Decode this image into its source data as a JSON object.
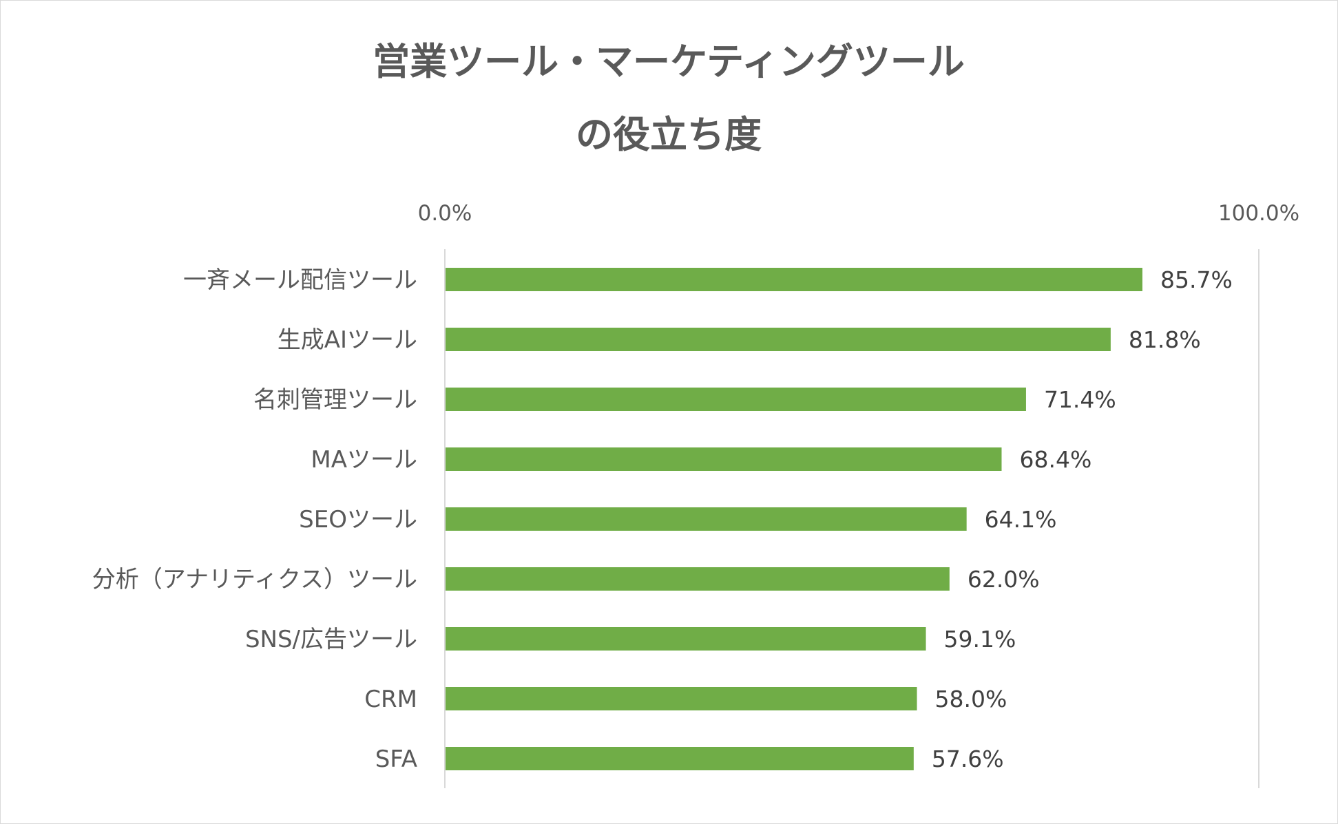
{
  "chart_data": {
    "type": "bar",
    "orientation": "horizontal",
    "title": "営業ツール・マーケティングツール\nの役立ち度",
    "categories": [
      "一斉メール配信ツール",
      "生成AIツール",
      "名刺管理ツール",
      "MAツール",
      "SEOツール",
      "分析（アナリティクス）ツール",
      "SNS/広告ツール",
      "CRM",
      "SFA"
    ],
    "values": [
      85.7,
      81.8,
      71.4,
      68.4,
      64.1,
      62.0,
      59.1,
      58.0,
      57.6
    ],
    "data_labels": [
      "85.7%",
      "81.8%",
      "71.4%",
      "68.4%",
      "64.1%",
      "62.0%",
      "59.1%",
      "58.0%",
      "57.6%"
    ],
    "xlim": [
      0,
      100
    ],
    "tick_labels": [
      "0.0%",
      "100.0%"
    ],
    "axis_position": "top",
    "grid": false,
    "bar_color": "#70ad47",
    "axis_color": "#d9d9d9",
    "text_color": "#595959"
  }
}
